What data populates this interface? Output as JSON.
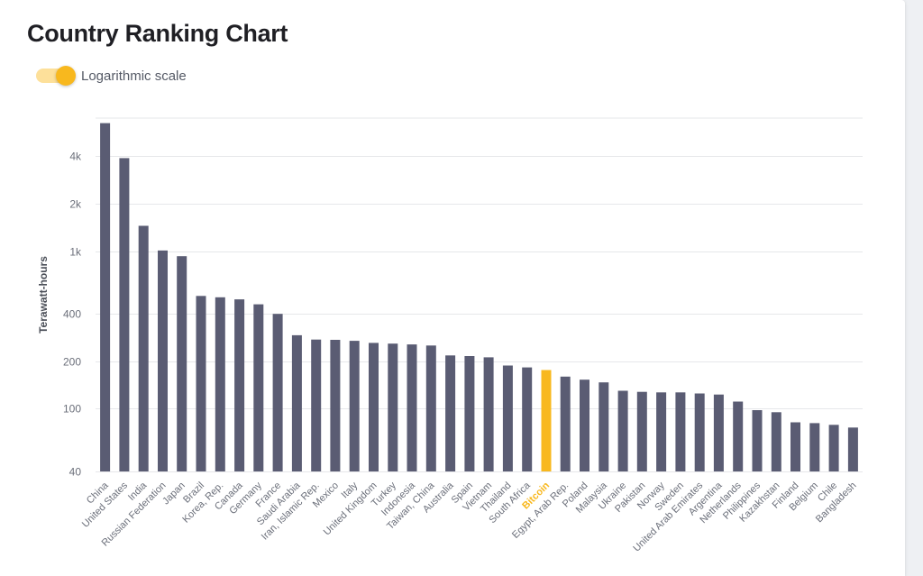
{
  "page": {
    "title": "Country Ranking Chart",
    "toggle_label": "Logarithmic scale",
    "toggle_on": true
  },
  "colors": {
    "bar": "#5a5c73",
    "highlight": "#f8b81e",
    "grid": "#e6e7ea",
    "tick_text": "#6b6f7a",
    "axis_title": "#4a4e57"
  },
  "chart_data": {
    "type": "bar",
    "title": "Country Ranking Chart",
    "xlabel": "",
    "ylabel": "Terawatt-hours",
    "y_scale": "log",
    "ylim": [
      40,
      7000
    ],
    "yticks": [
      40,
      100,
      200,
      400,
      1000,
      2000,
      4000
    ],
    "ytick_labels": [
      "40",
      "100",
      "200",
      "400",
      "1k",
      "2k",
      "4k"
    ],
    "grid": true,
    "legend": "none",
    "highlight_category": "Bitcoin",
    "categories": [
      "China",
      "United States",
      "India",
      "Russian Federation",
      "Japan",
      "Brazil",
      "Korea, Rep.",
      "Canada",
      "Germany",
      "France",
      "Saudi Arabia",
      "Iran, Islamic Rep.",
      "Mexico",
      "Italy",
      "United Kingdom",
      "Turkey",
      "Indonesia",
      "Taiwan, China",
      "Australia",
      "Spain",
      "Vietnam",
      "Thailand",
      "South Africa",
      "Bitcoin",
      "Egypt, Arab Rep.",
      "Poland",
      "Malaysia",
      "Ukraine",
      "Pakistan",
      "Norway",
      "Sweden",
      "United Arab Emirates",
      "Argentina",
      "Netherlands",
      "Philippines",
      "Kazakhstan",
      "Finland",
      "Belgium",
      "Chile",
      "Bangladesh"
    ],
    "values": [
      6500,
      3900,
      1450,
      1010,
      930,
      520,
      510,
      495,
      460,
      400,
      293,
      275,
      274,
      270,
      262,
      259,
      256,
      252,
      218,
      216,
      212,
      188,
      183,
      176,
      160,
      153,
      147,
      130,
      128,
      127,
      127,
      125,
      123,
      111,
      98,
      95,
      82,
      81,
      79,
      76
    ]
  }
}
